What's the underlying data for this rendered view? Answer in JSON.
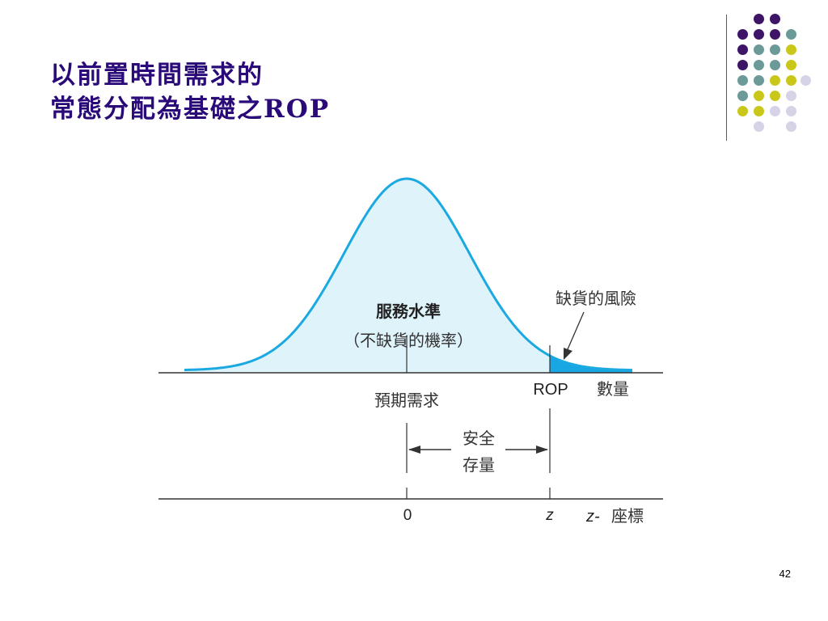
{
  "slide": {
    "title_line1": "以前置時間需求的",
    "title_line2": "常態分配為基礎之ROP",
    "page_number": "42"
  },
  "colors": {
    "title": "#2a0a78",
    "curve": "#1aa9e0",
    "curve_fill_light": "#dff3fb",
    "tail_fill": "#17a8e4",
    "deco_purple": "#3d1466",
    "deco_teal": "#6b9a98",
    "deco_yellow": "#c9c81a",
    "deco_lavender": "#d6d3e6"
  },
  "diagram": {
    "service_level_title": "服務水準",
    "service_level_sub": "（不缺貨的機率）",
    "stockout_risk": "缺貨的風險",
    "expected_demand": "預期需求",
    "rop_label": "ROP",
    "quantity_label": "數量",
    "safety_stock_line1": "安全",
    "safety_stock_line2": "存量",
    "z_zero": "0",
    "z_mark": "z",
    "z_axis_var": "z-",
    "z_axis_word": "座標"
  }
}
